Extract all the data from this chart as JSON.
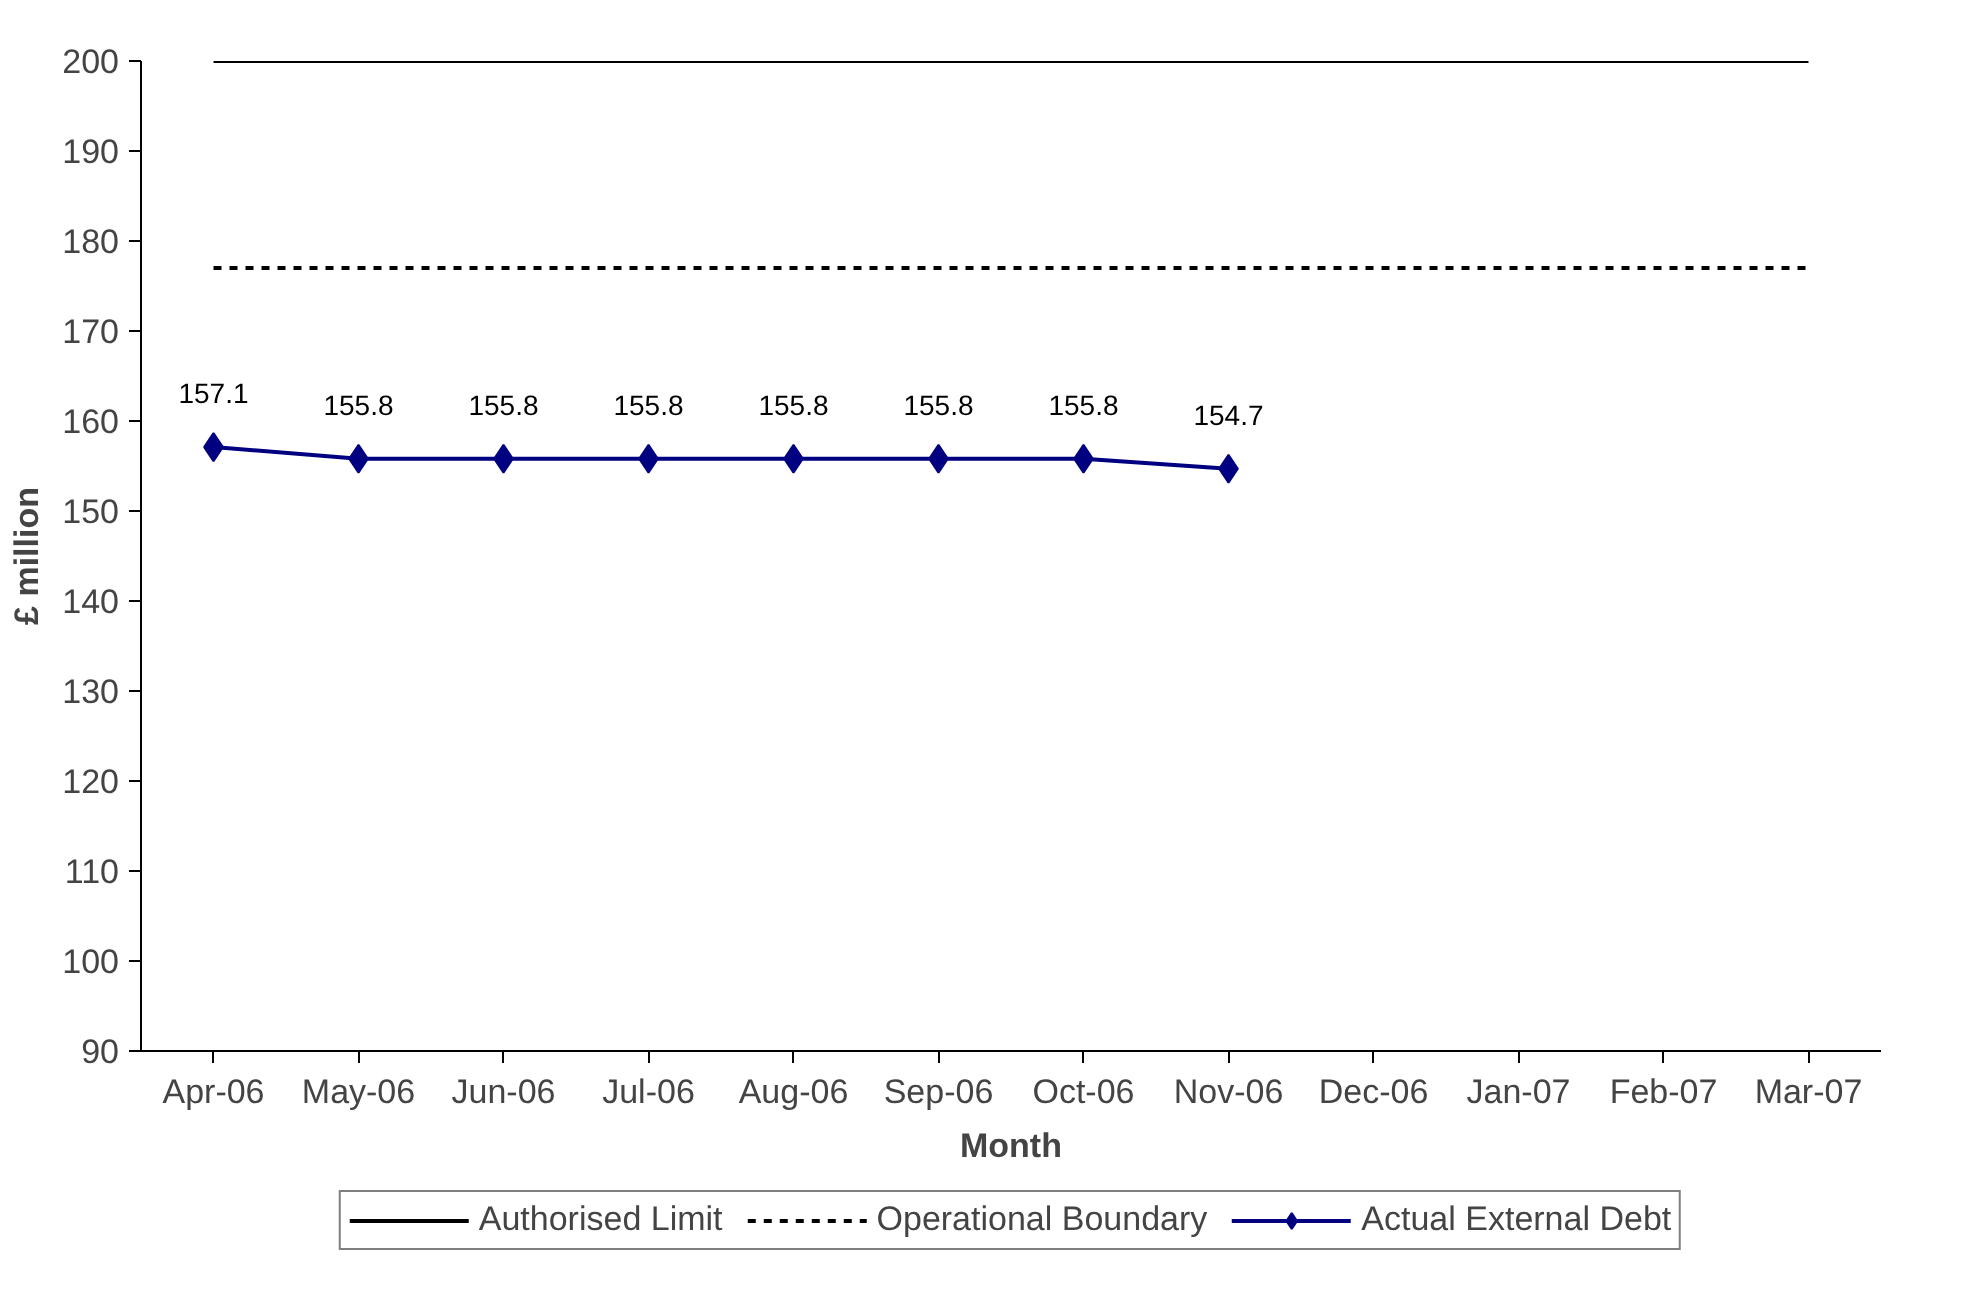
{
  "chart_data": {
    "type": "line",
    "xlabel": "Month",
    "ylabel": "£ million",
    "categories": [
      "Apr-06",
      "May-06",
      "Jun-06",
      "Jul-06",
      "Aug-06",
      "Sep-06",
      "Oct-06",
      "Nov-06",
      "Dec-06",
      "Jan-07",
      "Feb-07",
      "Mar-07"
    ],
    "series": [
      {
        "name": "Authorised Limit",
        "color": "#000000",
        "line_style": "solid",
        "marker": "none",
        "values": [
          200,
          200,
          200,
          200,
          200,
          200,
          200,
          200,
          200,
          200,
          200,
          200
        ]
      },
      {
        "name": "Operational Boundary",
        "color": "#000000",
        "line_style": "dashed",
        "marker": "none",
        "values": [
          177,
          177,
          177,
          177,
          177,
          177,
          177,
          177,
          177,
          177,
          177,
          177
        ]
      },
      {
        "name": "Actual External Debt",
        "color": "#000080",
        "line_style": "solid",
        "marker": "diamond",
        "values": [
          157.1,
          155.8,
          155.8,
          155.8,
          155.8,
          155.8,
          155.8,
          154.7,
          null,
          null,
          null,
          null
        ],
        "value_labels": [
          "157.1",
          "155.8",
          "155.8",
          "155.8",
          "155.8",
          "155.8",
          "155.8",
          "154.7",
          null,
          null,
          null,
          null
        ]
      }
    ],
    "ylim": [
      90,
      200
    ],
    "yticks": [
      90,
      100,
      110,
      120,
      130,
      140,
      150,
      160,
      170,
      180,
      190,
      200
    ],
    "grid": false,
    "legend": "bottom"
  }
}
